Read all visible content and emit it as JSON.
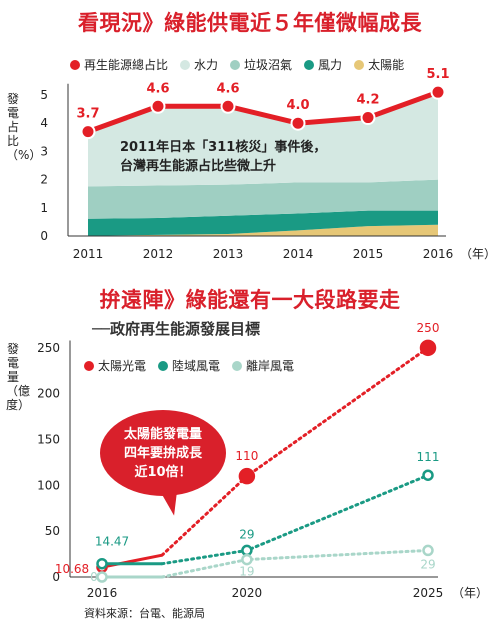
{
  "top": {
    "title": "看現況》綠能供電近５年僅微幅成長",
    "legend": [
      {
        "label": "再生能源總占比",
        "color": "#e31f26"
      },
      {
        "label": "水力",
        "color": "#d4e8e2"
      },
      {
        "label": "垃圾沼氣",
        "color": "#9fcfc2"
      },
      {
        "label": "風力",
        "color": "#1a9a84"
      },
      {
        "label": "太陽能",
        "color": "#e6c777"
      }
    ],
    "ylabel": "發電占比（%）",
    "annotation_line1": "2011年日本「311核災」事件後，",
    "annotation_line2": "台灣再生能源占比些微上升",
    "x_unit": "（年）"
  },
  "bottom": {
    "title": "拚遠陣》綠能還有一大段路要走",
    "subtitle": "──政府再生能源發展目標",
    "legend": [
      {
        "label": "太陽光電",
        "color": "#e31f26"
      },
      {
        "label": "陸域風電",
        "color": "#1a9a84"
      },
      {
        "label": "離岸風電",
        "color": "#a9d6c9"
      }
    ],
    "ylabel": "發電量（億度）",
    "callout_line1": "太陽能發電量",
    "callout_line2": "四年要拚成長",
    "callout_line3": "近10倍！",
    "x_unit": "（年）",
    "source": "資料來源：台電、能源局"
  },
  "chart_data": [
    {
      "type": "area",
      "x": [
        2011,
        2012,
        2013,
        2014,
        2015,
        2016
      ],
      "ylim": [
        0,
        5.5
      ],
      "yticks": [
        0,
        1,
        2,
        3,
        4,
        5
      ],
      "grid": false,
      "series": [
        {
          "name": "再生能源總占比",
          "type": "line",
          "values": [
            3.7,
            4.6,
            4.6,
            4.0,
            4.2,
            5.1
          ],
          "labels": [
            "3.7",
            "4.6",
            "4.6",
            "4.0",
            "4.2",
            "5.1"
          ]
        },
        {
          "name": "太陽能",
          "values": [
            0.01,
            0.04,
            0.07,
            0.2,
            0.35,
            0.4
          ]
        },
        {
          "name": "風力",
          "values": [
            0.6,
            0.6,
            0.65,
            0.6,
            0.55,
            0.5
          ]
        },
        {
          "name": "垃圾沼氣",
          "values": [
            1.15,
            1.15,
            1.1,
            1.1,
            1.0,
            1.1
          ]
        },
        {
          "name": "水力",
          "values": [
            1.94,
            2.81,
            2.78,
            2.1,
            2.3,
            3.1
          ]
        }
      ]
    },
    {
      "type": "line",
      "x": [
        2016,
        2020,
        2025
      ],
      "ylim": [
        0,
        260
      ],
      "yticks": [
        0,
        50,
        100,
        150,
        200,
        250
      ],
      "grid": false,
      "series": [
        {
          "name": "太陽光電",
          "values": [
            10.68,
            110,
            250
          ],
          "labels": [
            "10.68",
            "110",
            "250"
          ]
        },
        {
          "name": "陸域風電",
          "values": [
            14.47,
            29,
            111
          ],
          "labels": [
            "14.47",
            "29",
            "111"
          ]
        },
        {
          "name": "離岸風電",
          "values": [
            0,
            19,
            29
          ],
          "labels": [
            "0",
            "19",
            "29"
          ]
        }
      ]
    }
  ]
}
